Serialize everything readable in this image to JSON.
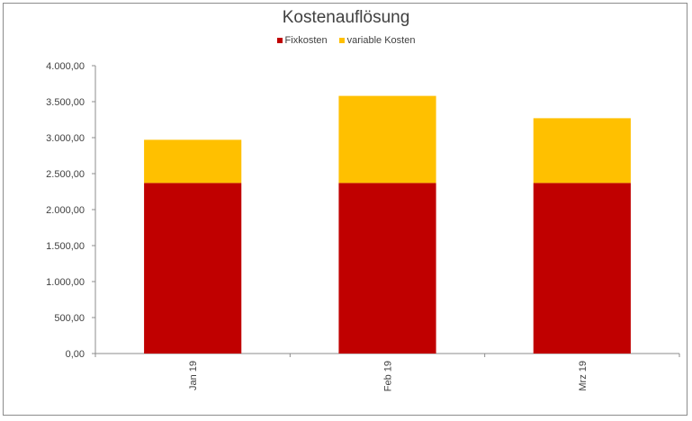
{
  "chart_data": {
    "type": "bar",
    "stacked": true,
    "title": "Kostenauflösung",
    "categories": [
      "Jan 19",
      "Feb 19",
      "Mrz 19"
    ],
    "series": [
      {
        "name": "Fixkosten",
        "color": "#c00000",
        "values": [
          2370,
          2370,
          2370
        ]
      },
      {
        "name": "variable Kosten",
        "color": "#ffc000",
        "values": [
          600,
          1210,
          900
        ]
      }
    ],
    "ylim": [
      0,
      4000
    ],
    "yticks": [
      "0,00",
      "500,00",
      "1.000,00",
      "1.500,00",
      "2.000,00",
      "2.500,00",
      "3.000,00",
      "3.500,00",
      "4.000,00"
    ],
    "legend_position": "top",
    "grid": false
  }
}
